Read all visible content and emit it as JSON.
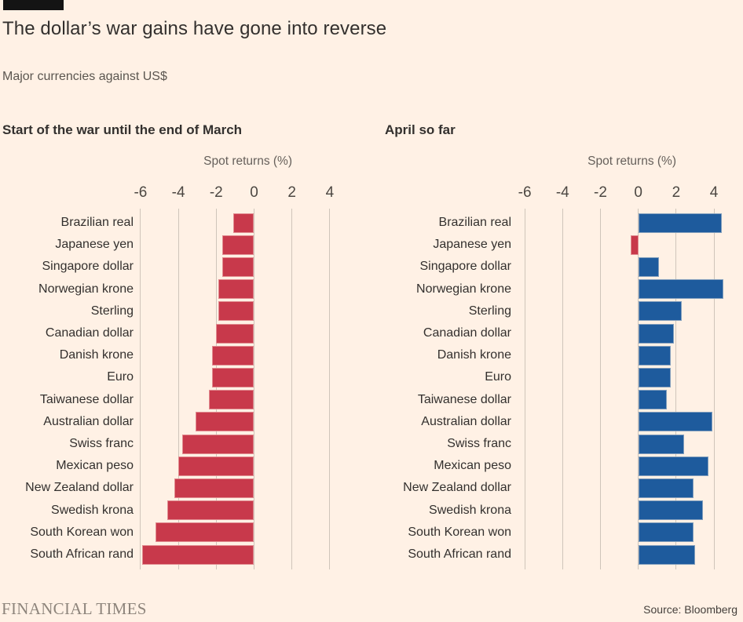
{
  "header": {
    "title": "The dollar’s war gains have gone into reverse",
    "subtitle": "Major currencies against US$"
  },
  "colors": {
    "negative": "#c8394b",
    "positive": "#1e5b9d",
    "background": "#fff1e5",
    "gridline": "#cfc5ba",
    "text_dark": "#33302e",
    "text_gray": "#66605b"
  },
  "chart_data": [
    {
      "type": "bar",
      "orientation": "horizontal",
      "heading": "Start of the war until the end of March",
      "axis_label": "Spot returns (%)",
      "ticks": [
        -6,
        -4,
        -2,
        0,
        2,
        4
      ],
      "xlim": [
        -6,
        5
      ],
      "grid": true,
      "categories": [
        "Brazilian real",
        "Japanese yen",
        "Singapore dollar",
        "Norwegian krone",
        "Sterling",
        "Canadian dollar",
        "Danish krone",
        "Euro",
        "Taiwanese dollar",
        "Australian dollar",
        "Swiss franc",
        "Mexican peso",
        "New Zealand dollar",
        "Swedish krona",
        "South Korean won",
        "South African rand"
      ],
      "values": [
        -1.1,
        -1.7,
        -1.7,
        -1.9,
        -1.9,
        -2.0,
        -2.2,
        -2.2,
        -2.4,
        -3.1,
        -3.8,
        -4.0,
        -4.2,
        -4.6,
        -5.2,
        -5.9
      ]
    },
    {
      "type": "bar",
      "orientation": "horizontal",
      "heading": "April so far",
      "axis_label": "Spot returns (%)",
      "ticks": [
        -6,
        -4,
        -2,
        0,
        2,
        4
      ],
      "xlim": [
        -6,
        5
      ],
      "grid": true,
      "categories": [
        "Brazilian real",
        "Japanese yen",
        "Singapore dollar",
        "Norwegian krone",
        "Sterling",
        "Canadian dollar",
        "Danish krone",
        "Euro",
        "Taiwanese dollar",
        "Australian dollar",
        "Swiss franc",
        "Mexican peso",
        "New Zealand dollar",
        "Swedish krona",
        "South Korean won",
        "South African rand"
      ],
      "values": [
        4.4,
        -0.4,
        1.1,
        4.5,
        2.3,
        1.9,
        1.7,
        1.7,
        1.5,
        3.9,
        2.4,
        3.7,
        2.9,
        3.4,
        2.9,
        3.0
      ]
    }
  ],
  "footer": {
    "brand": "FINANCIAL TIMES",
    "source": "Source: Bloomberg"
  }
}
